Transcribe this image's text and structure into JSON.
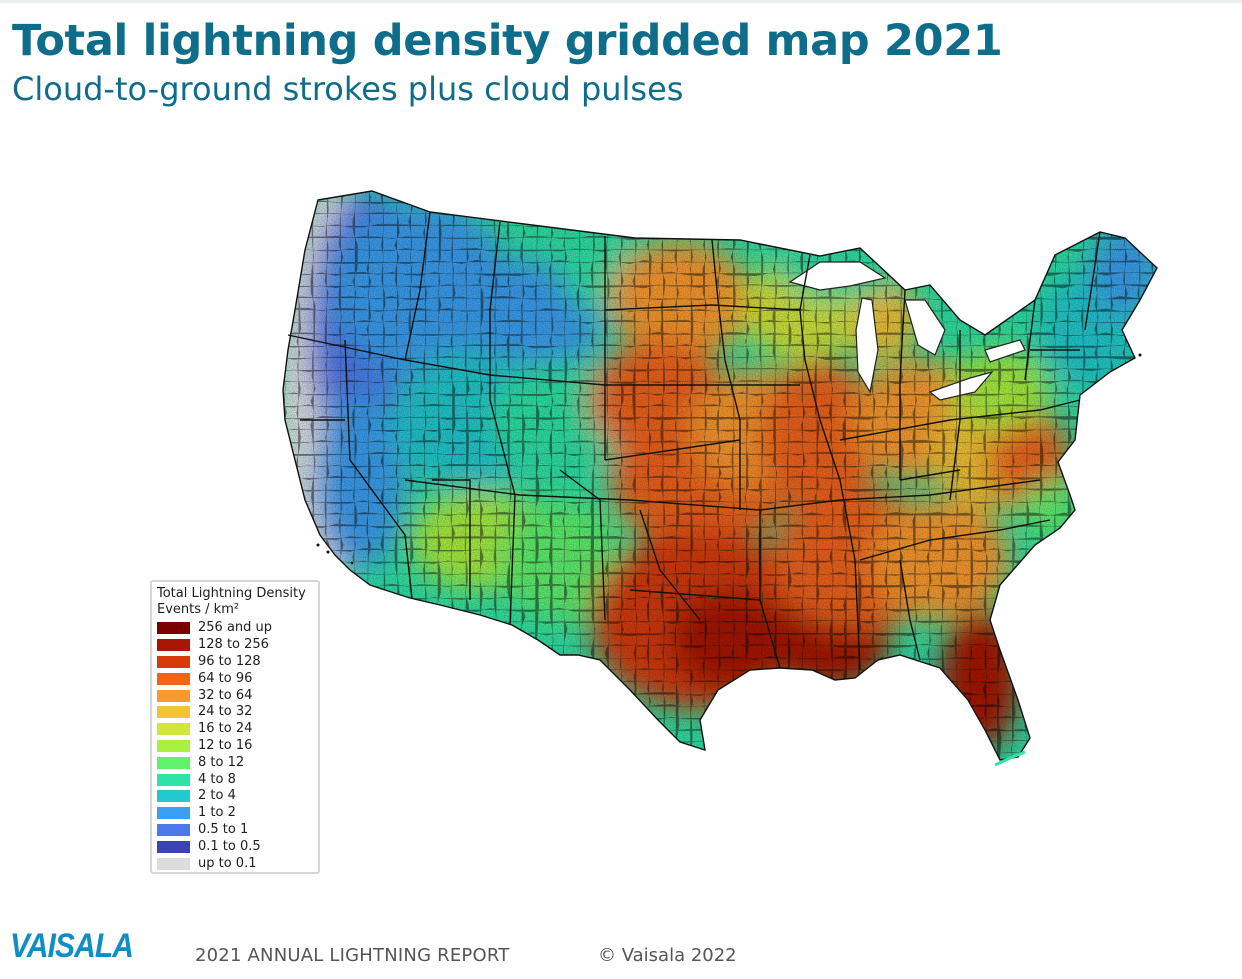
{
  "header": {
    "title": "Total lightning density gridded map 2021",
    "subtitle": "Cloud-to-ground strokes plus cloud pulses"
  },
  "map": {
    "region": "Contiguous United States",
    "state_border_color": "#111111",
    "county_border_color": "#1a1a1a"
  },
  "legend": {
    "title": "Total Lightning Density",
    "unit": "Events / km²",
    "items": [
      {
        "label": "256 and up",
        "color": "#7a0000"
      },
      {
        "label": "128 to 256",
        "color": "#a81503"
      },
      {
        "label": "96 to 128",
        "color": "#d63a08"
      },
      {
        "label": "64 to 96",
        "color": "#f0641a"
      },
      {
        "label": "32 to 64",
        "color": "#fa9a2e"
      },
      {
        "label": "24 to 32",
        "color": "#f3c336"
      },
      {
        "label": "16 to 24",
        "color": "#d2e53a"
      },
      {
        "label": "12 to 16",
        "color": "#a8f041"
      },
      {
        "label": "8 to 12",
        "color": "#5ef26d"
      },
      {
        "label": "4 to 8",
        "color": "#2ee3a6"
      },
      {
        "label": "2 to 4",
        "color": "#23c9cf"
      },
      {
        "label": "1 to 2",
        "color": "#3a9ff0"
      },
      {
        "label": "0.5 to 1",
        "color": "#4e77ec"
      },
      {
        "label": "0.1 to 0.5",
        "color": "#3b44b0"
      },
      {
        "label": "up to 0.1",
        "color": "#dcdcdc"
      }
    ]
  },
  "footer": {
    "logo": "VAISALA",
    "report": "2021 ANNUAL LIGHTNING REPORT",
    "copyright": "© Vaisala 2022"
  }
}
